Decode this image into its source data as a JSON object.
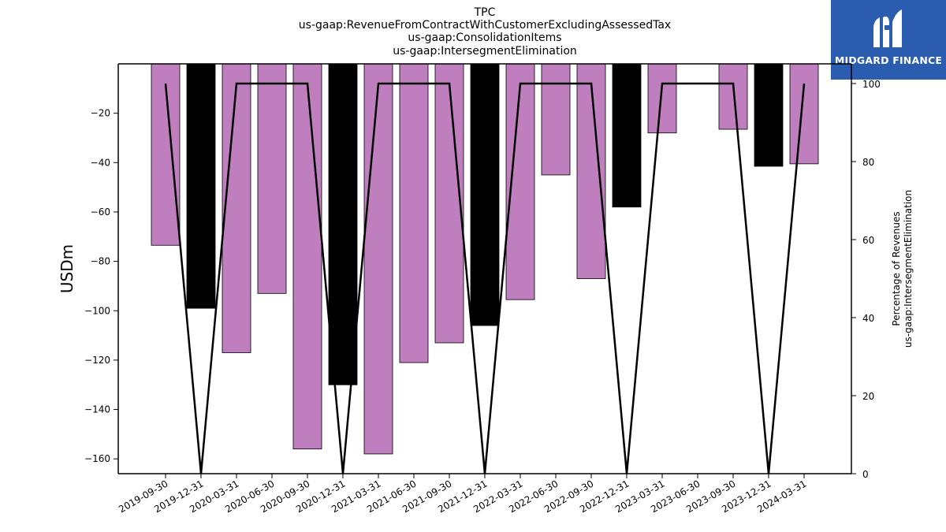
{
  "logo": {
    "text": "MIDGARD FINANCE",
    "icon": "midgard-finance-logo-icon",
    "background": "#2a5db0"
  },
  "chart_data": {
    "type": "bar",
    "title_lines": [
      "TPC",
      "us-gaap:RevenueFromContractWithCustomerExcludingAssessedTax",
      "us-gaap:ConsolidationItems",
      "us-gaap:IntersegmentElimination"
    ],
    "ylabel": "USDm",
    "y2label_lines": [
      "Percentage of Revenues",
      "us-gaap:IntersegmentElimination"
    ],
    "categories": [
      "2019-09-30",
      "2019-12-31",
      "2020-03-31",
      "2020-06-30",
      "2020-09-30",
      "2020-12-31",
      "2021-03-31",
      "2021-06-30",
      "2021-09-30",
      "2021-12-31",
      "2022-03-31",
      "2022-06-30",
      "2022-09-30",
      "2022-12-31",
      "2023-03-31",
      "2023-06-30",
      "2023-09-30",
      "2023-12-31",
      "2024-03-31"
    ],
    "series": [
      {
        "kind": "bar",
        "axis": "left",
        "values": [
          -73.5,
          -99,
          -117,
          -93,
          -156,
          -130,
          -158,
          -121,
          -113,
          -106,
          -95.5,
          -45,
          -87,
          -58,
          -28,
          null,
          -26.5,
          -41.5,
          -40.5
        ],
        "colors": [
          "#bf7fbf",
          "#000000",
          "#bf7fbf",
          "#bf7fbf",
          "#bf7fbf",
          "#000000",
          "#bf7fbf",
          "#bf7fbf",
          "#bf7fbf",
          "#000000",
          "#bf7fbf",
          "#bf7fbf",
          "#bf7fbf",
          "#000000",
          "#bf7fbf",
          "#bf7fbf",
          "#bf7fbf",
          "#000000",
          "#bf7fbf"
        ]
      },
      {
        "kind": "line",
        "axis": "right",
        "color": "#000000",
        "values": [
          100,
          0,
          100,
          100,
          100,
          0,
          100,
          100,
          100,
          0,
          100,
          100,
          100,
          0,
          100,
          100,
          100,
          0,
          100
        ]
      }
    ],
    "ylim": [
      -166,
      0
    ],
    "yticks": [
      -20,
      -40,
      -60,
      -80,
      -100,
      -120,
      -140,
      -160
    ],
    "y2lim": [
      0,
      100
    ],
    "y2ticks": [
      0,
      20,
      40,
      60,
      80,
      100
    ],
    "grid": false,
    "legend": "none"
  }
}
